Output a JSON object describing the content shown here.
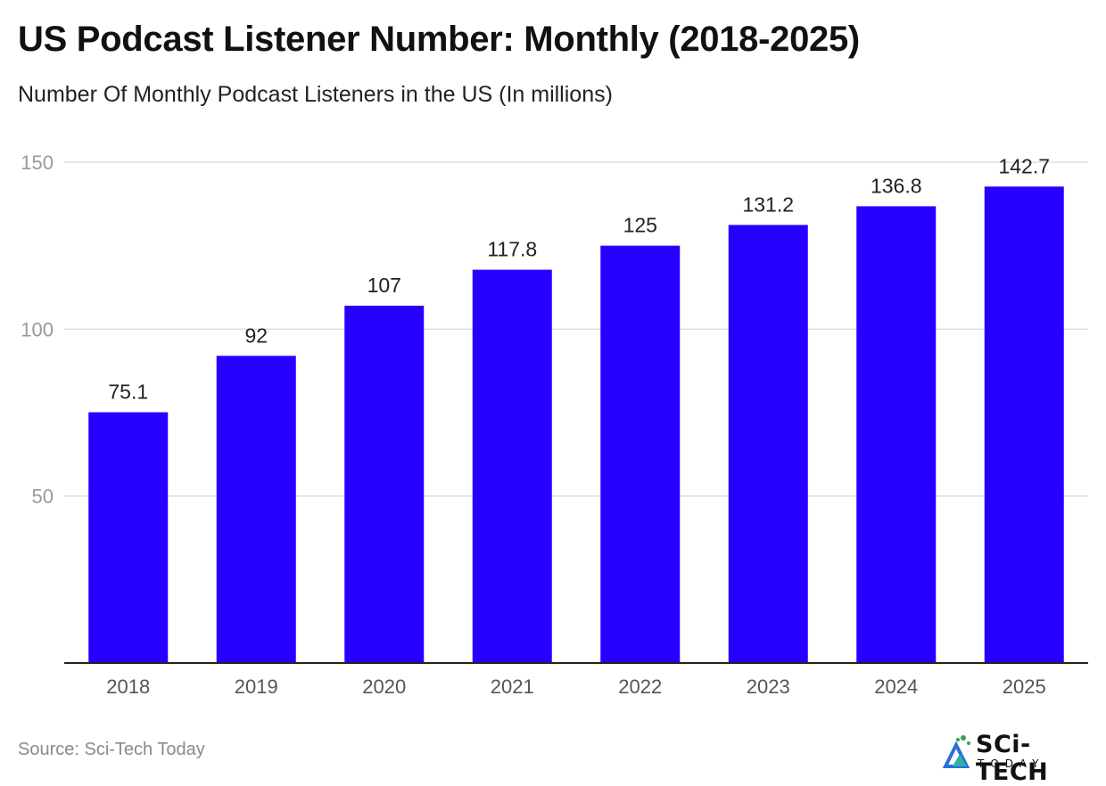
{
  "title": "US Podcast Listener Number: Monthly (2018-2025)",
  "subtitle": "Number Of Monthly Podcast Listeners in the US (In millions)",
  "source": "Source: Sci-Tech Today",
  "logo": {
    "main": "SCi-TECH",
    "sub": "TODAY"
  },
  "colors": {
    "bar": "#2600ff",
    "grid": "#dddddd",
    "axis": "#222222",
    "tick": "#999999",
    "label": "#222222"
  },
  "chart_data": {
    "type": "bar",
    "categories": [
      "2018",
      "2019",
      "2020",
      "2021",
      "2022",
      "2023",
      "2024",
      "2025"
    ],
    "values": [
      75.1,
      92,
      107,
      117.8,
      125,
      131.2,
      136.8,
      142.7
    ],
    "value_labels": [
      "75.1",
      "92",
      "107",
      "117.8",
      "125",
      "131.2",
      "136.8",
      "142.7"
    ],
    "yticks": [
      50,
      100,
      150
    ],
    "ylim": [
      0,
      150
    ],
    "grid": true,
    "legend": "none"
  }
}
